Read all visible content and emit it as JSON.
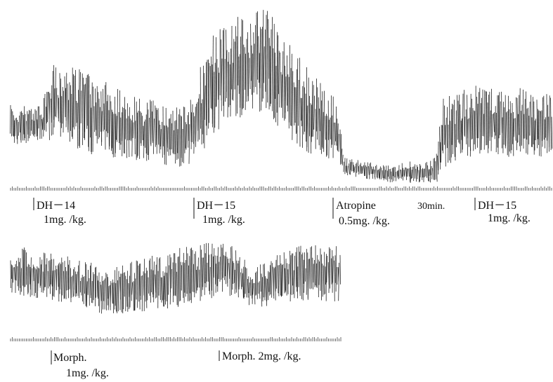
{
  "panels": [
    {
      "markers": [
        {
          "label": "DH－14",
          "dose": "1mg. /kg."
        },
        {
          "label": "DH－15",
          "dose": "1mg. /kg."
        },
        {
          "label": "Atropine",
          "dose": "0.5mg. /kg."
        },
        {
          "label": "30min."
        },
        {
          "label": "DH－15",
          "dose": "1mg. /kg."
        }
      ]
    },
    {
      "markers": [
        {
          "label": "Morph.",
          "dose": "1mg. /kg."
        },
        {
          "label": "Morph. 2mg. /kg."
        }
      ]
    }
  ]
}
